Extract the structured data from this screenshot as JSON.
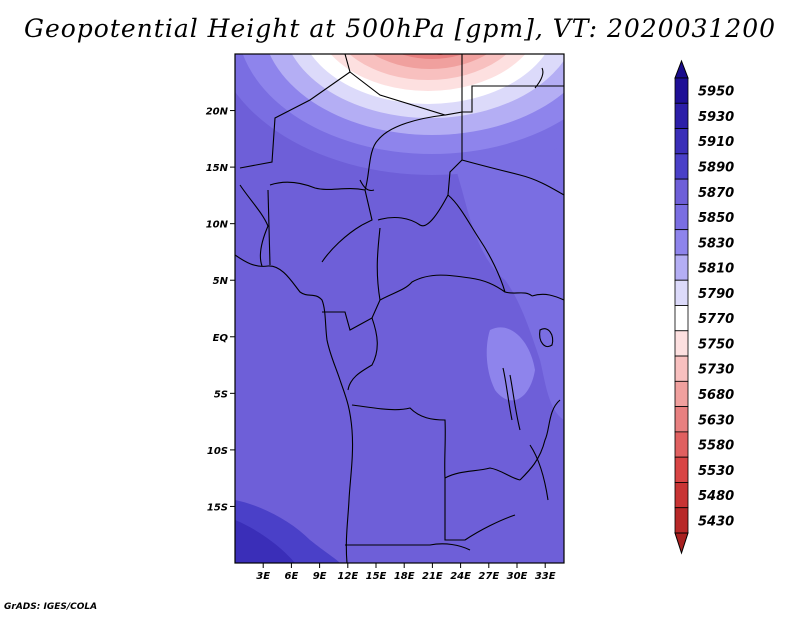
{
  "title": "Geopotential Height at 500hPa [gpm], VT: 2020031200",
  "credit": "GrADS: IGES/COLA",
  "map": {
    "lon_range": [
      0,
      35
    ],
    "lat_range": [
      -20,
      25
    ],
    "lat_ticks": [
      {
        "value": 20,
        "label": "20N"
      },
      {
        "value": 15,
        "label": "15N"
      },
      {
        "value": 10,
        "label": "10N"
      },
      {
        "value": 5,
        "label": "5N"
      },
      {
        "value": 0,
        "label": "EQ"
      },
      {
        "value": -5,
        "label": "5S"
      },
      {
        "value": -10,
        "label": "10S"
      },
      {
        "value": -15,
        "label": "15S"
      }
    ],
    "lon_ticks": [
      {
        "value": 3,
        "label": "3E"
      },
      {
        "value": 6,
        "label": "6E"
      },
      {
        "value": 9,
        "label": "9E"
      },
      {
        "value": 12,
        "label": "12E"
      },
      {
        "value": 15,
        "label": "15E"
      },
      {
        "value": 18,
        "label": "18E"
      },
      {
        "value": 21,
        "label": "21E"
      },
      {
        "value": 24,
        "label": "24E"
      },
      {
        "value": 27,
        "label": "27E"
      },
      {
        "value": 30,
        "label": "30E"
      },
      {
        "value": 33,
        "label": "33E"
      }
    ]
  },
  "colorbar": {
    "levels": [
      {
        "label": "5950",
        "color": "#1e0f96"
      },
      {
        "label": "5930",
        "color": "#2c1ea8"
      },
      {
        "label": "5910",
        "color": "#3a2eb8"
      },
      {
        "label": "5890",
        "color": "#4a40c8"
      },
      {
        "label": "5870",
        "color": "#6e5fd8"
      },
      {
        "label": "5850",
        "color": "#7a6ee2"
      },
      {
        "label": "5830",
        "color": "#8e84ec"
      },
      {
        "label": "5810",
        "color": "#b4aef4"
      },
      {
        "label": "5790",
        "color": "#dcdafa"
      },
      {
        "label": "5770",
        "color": "#ffffff"
      },
      {
        "label": "5750",
        "color": "#fde0e0"
      },
      {
        "label": "5730",
        "color": "#f8c0bf"
      },
      {
        "label": "5680",
        "color": "#f0a09e"
      },
      {
        "label": "5630",
        "color": "#e88080"
      },
      {
        "label": "5580",
        "color": "#e06060"
      },
      {
        "label": "5530",
        "color": "#d84444"
      },
      {
        "label": "5480",
        "color": "#c83434"
      },
      {
        "label": "5430",
        "color": "#b82828"
      }
    ],
    "top_color": "#1a0c8c",
    "bottom_color": "#a82020"
  }
}
